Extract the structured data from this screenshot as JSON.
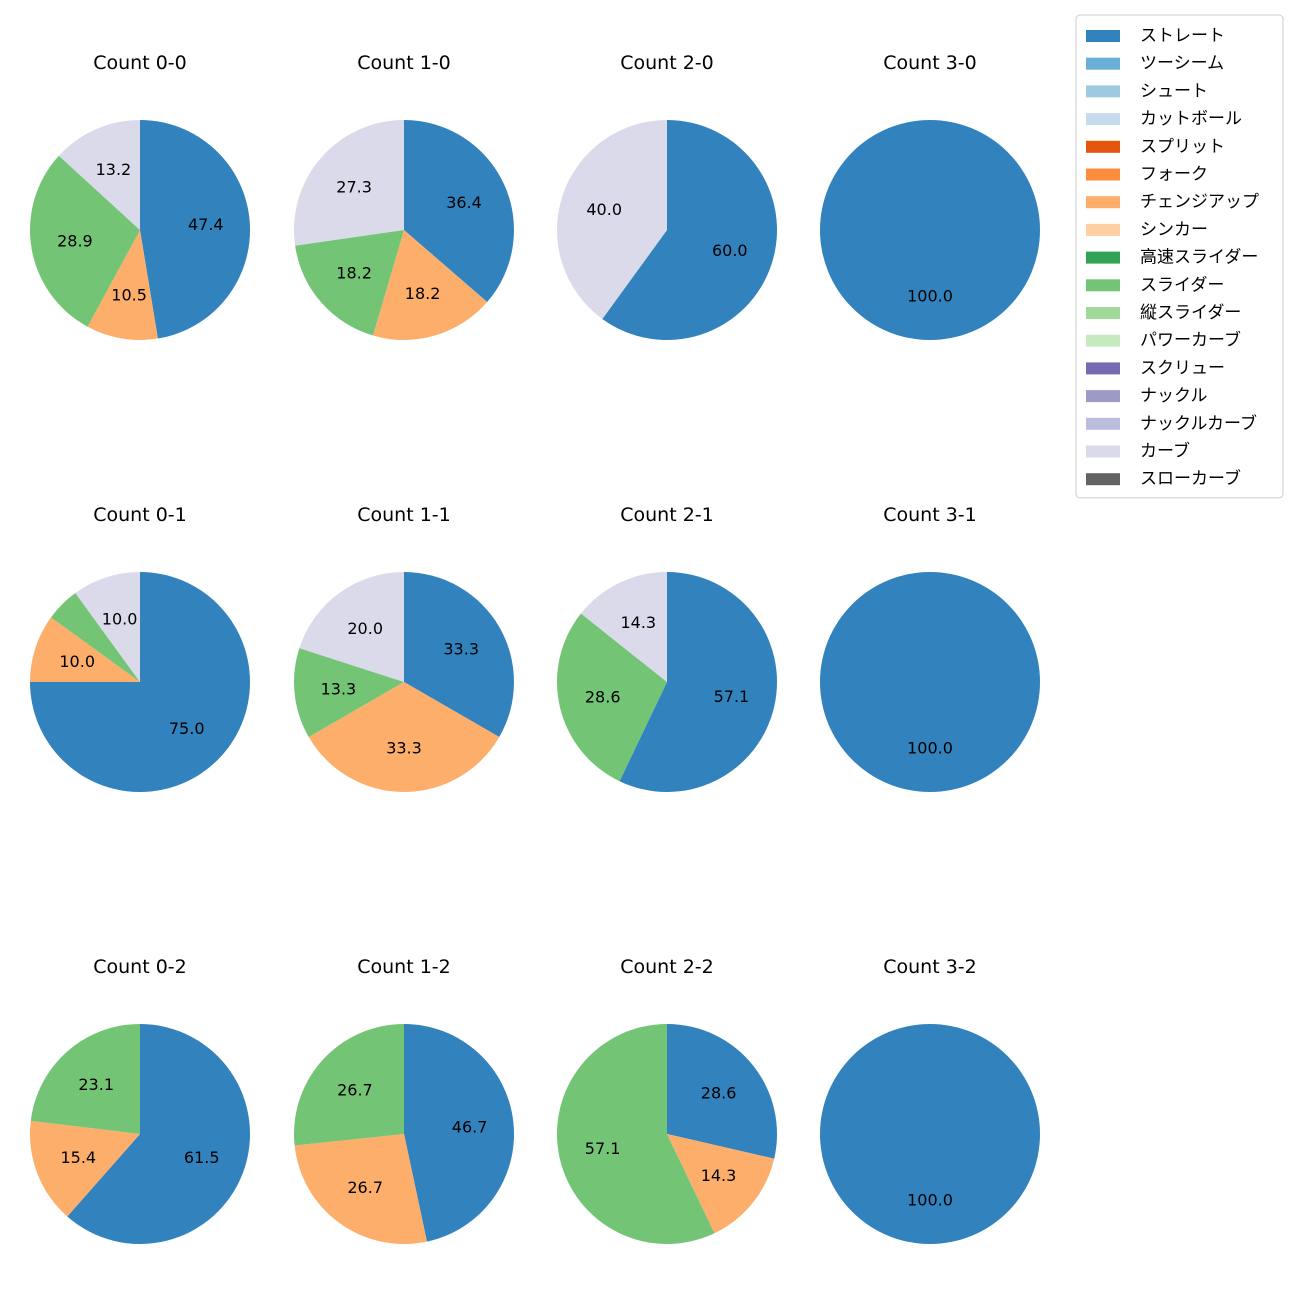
{
  "legend": [
    {
      "name": "ストレート",
      "color": "#3182bd"
    },
    {
      "name": "ツーシーム",
      "color": "#6baed6"
    },
    {
      "name": "シュート",
      "color": "#9ecae1"
    },
    {
      "name": "カットボール",
      "color": "#c6dbef"
    },
    {
      "name": "スプリット",
      "color": "#e6550d"
    },
    {
      "name": "フォーク",
      "color": "#fd8d3c"
    },
    {
      "name": "チェンジアップ",
      "color": "#fdae6b"
    },
    {
      "name": "シンカー",
      "color": "#fdd0a2"
    },
    {
      "name": "高速スライダー",
      "color": "#31a354"
    },
    {
      "name": "スライダー",
      "color": "#74c476"
    },
    {
      "name": "縦スライダー",
      "color": "#a1d99b"
    },
    {
      "name": "パワーカーブ",
      "color": "#c7e9c0"
    },
    {
      "name": "スクリュー",
      "color": "#756bb1"
    },
    {
      "name": "ナックル",
      "color": "#9e9ac8"
    },
    {
      "name": "ナックルカーブ",
      "color": "#bcbddc"
    },
    {
      "name": "カーブ",
      "color": "#dadaeb"
    },
    {
      "name": "スローカーブ",
      "color": "#636363"
    }
  ],
  "chart_data": [
    {
      "type": "pie",
      "title": "Count 0-0",
      "slices": [
        {
          "name": "ストレート",
          "value": 47.4,
          "label": "47.4"
        },
        {
          "name": "チェンジアップ",
          "value": 10.5,
          "label": "10.5"
        },
        {
          "name": "スライダー",
          "value": 28.9,
          "label": "28.9"
        },
        {
          "name": "カーブ",
          "value": 13.2,
          "label": "13.2"
        }
      ]
    },
    {
      "type": "pie",
      "title": "Count 1-0",
      "slices": [
        {
          "name": "ストレート",
          "value": 36.4,
          "label": "36.4"
        },
        {
          "name": "チェンジアップ",
          "value": 18.2,
          "label": "18.2"
        },
        {
          "name": "スライダー",
          "value": 18.2,
          "label": "18.2"
        },
        {
          "name": "カーブ",
          "value": 27.3,
          "label": "27.3"
        }
      ]
    },
    {
      "type": "pie",
      "title": "Count 2-0",
      "slices": [
        {
          "name": "ストレート",
          "value": 60.0,
          "label": "60.0"
        },
        {
          "name": "カーブ",
          "value": 40.0,
          "label": "40.0"
        }
      ]
    },
    {
      "type": "pie",
      "title": "Count 3-0",
      "slices": [
        {
          "name": "ストレート",
          "value": 100.0,
          "label": "100.0"
        }
      ]
    },
    {
      "type": "pie",
      "title": "Count 0-1",
      "slices": [
        {
          "name": "ストレート",
          "value": 75.0,
          "label": "75.0"
        },
        {
          "name": "チェンジアップ",
          "value": 10.0,
          "label": "10.0"
        },
        {
          "name": "スライダー",
          "value": 5.0,
          "label": ""
        },
        {
          "name": "カーブ",
          "value": 10.0,
          "label": "10.0"
        }
      ]
    },
    {
      "type": "pie",
      "title": "Count 1-1",
      "slices": [
        {
          "name": "ストレート",
          "value": 33.3,
          "label": "33.3"
        },
        {
          "name": "チェンジアップ",
          "value": 33.3,
          "label": "33.3"
        },
        {
          "name": "スライダー",
          "value": 13.3,
          "label": "13.3"
        },
        {
          "name": "カーブ",
          "value": 20.0,
          "label": "20.0"
        }
      ]
    },
    {
      "type": "pie",
      "title": "Count 2-1",
      "slices": [
        {
          "name": "ストレート",
          "value": 57.1,
          "label": "57.1"
        },
        {
          "name": "スライダー",
          "value": 28.6,
          "label": "28.6"
        },
        {
          "name": "カーブ",
          "value": 14.3,
          "label": "14.3"
        }
      ]
    },
    {
      "type": "pie",
      "title": "Count 3-1",
      "slices": [
        {
          "name": "ストレート",
          "value": 100.0,
          "label": "100.0"
        }
      ]
    },
    {
      "type": "pie",
      "title": "Count 0-2",
      "slices": [
        {
          "name": "ストレート",
          "value": 61.5,
          "label": "61.5"
        },
        {
          "name": "チェンジアップ",
          "value": 15.4,
          "label": "15.4"
        },
        {
          "name": "スライダー",
          "value": 23.1,
          "label": "23.1"
        }
      ]
    },
    {
      "type": "pie",
      "title": "Count 1-2",
      "slices": [
        {
          "name": "ストレート",
          "value": 46.7,
          "label": "46.7"
        },
        {
          "name": "チェンジアップ",
          "value": 26.7,
          "label": "26.7"
        },
        {
          "name": "スライダー",
          "value": 26.7,
          "label": "26.7"
        }
      ]
    },
    {
      "type": "pie",
      "title": "Count 2-2",
      "slices": [
        {
          "name": "ストレート",
          "value": 28.6,
          "label": "28.6"
        },
        {
          "name": "チェンジアップ",
          "value": 14.3,
          "label": "14.3"
        },
        {
          "name": "スライダー",
          "value": 57.1,
          "label": "57.1"
        }
      ]
    },
    {
      "type": "pie",
      "title": "Count 3-2",
      "slices": [
        {
          "name": "ストレート",
          "value": 100.0,
          "label": "100.0"
        }
      ]
    }
  ]
}
